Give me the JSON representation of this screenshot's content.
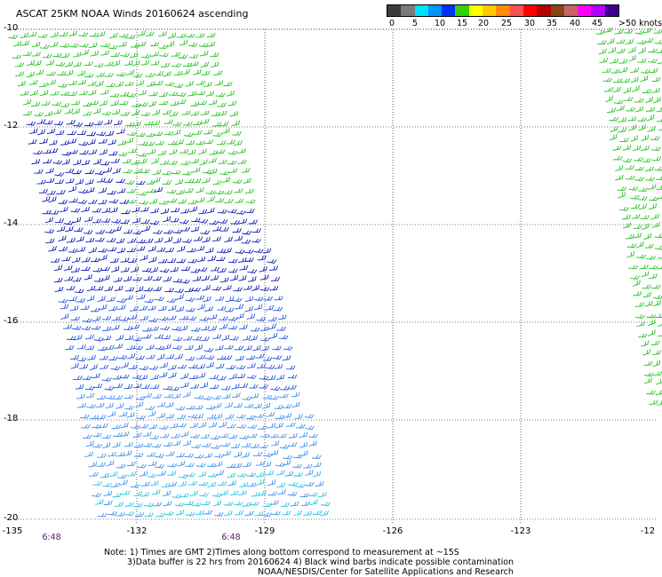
{
  "title": "ASCAT 25KM NOAA Winds 20160624 ascending",
  "legend": {
    "labels": [
      "0",
      "5",
      "10",
      "15",
      "20",
      "25",
      "30",
      "35",
      "40",
      "45",
      ">50 knots"
    ],
    "colors": [
      "#3c3c3c",
      "#7a7a7a",
      "#00e1ff",
      "#0096ff",
      "#0030ff",
      "#32d200",
      "#ffff00",
      "#ffc800",
      "#ff8c00",
      "#ff5050",
      "#ff0000",
      "#b40000",
      "#8b4513",
      "#c86464",
      "#ff00ff",
      "#b400ff",
      "#3c008c"
    ]
  },
  "lat_ticks": [
    "-10",
    "-12",
    "-14",
    "-16",
    "-18",
    "-20"
  ],
  "lon_ticks": [
    "-135",
    "-132",
    "-129",
    "-126",
    "-123",
    "-12"
  ],
  "time_labels": [
    "6:48",
    "6:48"
  ],
  "notes": [
    "Note: 1) Times are GMT 2)Times along bottom correspond to measurement at ~15S",
    "3)Data buffer is 22 hrs from 20160624 4) Black wind barbs indicate possible contamination",
    "NOAA/NESDIS/Center for Satellite Applications and Research"
  ],
  "swath_colors": {
    "green": "#22c21e",
    "dark_blue": "#0c16b8",
    "blue": "#1f52e0",
    "light_blue": "#3a8ef0",
    "cyan": "#18c6e0"
  }
}
